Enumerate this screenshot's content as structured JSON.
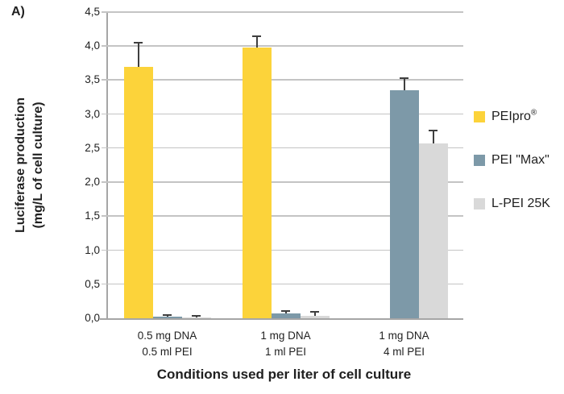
{
  "figure_label": "A)",
  "axis": {
    "x_title": "Conditions used per liter of cell culture",
    "y_title_line1": "Luciferase production",
    "y_title_line2": "(mg/L of cell culture)"
  },
  "legend": {
    "items": [
      {
        "label": "PEIpro",
        "suffix": "®"
      },
      {
        "label": "PEI \"Max\"",
        "suffix": ""
      },
      {
        "label": "L-PEI 25K",
        "suffix": ""
      }
    ]
  },
  "chart_data": {
    "type": "bar",
    "title": "",
    "xlabel": "Conditions used per liter of cell culture",
    "ylabel": "Luciferase production (mg/L of cell culture)",
    "ylabel_lines": [
      "Luciferase production",
      "(mg/L of cell culture)"
    ],
    "categories": [
      [
        "0.5 mg DNA",
        "0.5 ml PEI"
      ],
      [
        "1 mg DNA",
        "1 ml PEI"
      ],
      [
        "1 mg DNA",
        "4 ml PEI"
      ]
    ],
    "series": [
      {
        "name": "PEIpro®",
        "color": "#FCD33A",
        "values": [
          3.7,
          3.98,
          null
        ],
        "errors_plus": [
          0.35,
          0.17,
          null
        ]
      },
      {
        "name": "PEI \"Max\"",
        "color": "#7D99A8",
        "values": [
          0.02,
          0.07,
          3.35
        ],
        "errors_plus": [
          0.03,
          0.04,
          0.18
        ]
      },
      {
        "name": "L-PEI 25K",
        "color": "#D9D9D9",
        "values": [
          0.01,
          0.04,
          2.57
        ],
        "errors_plus": [
          0.02,
          0.05,
          0.19
        ]
      }
    ],
    "ylim": [
      0,
      4.5
    ],
    "ytick_step": 0.5,
    "ytick_labels": [
      "0,0",
      "0,5",
      "1,0",
      "1,5",
      "2,0",
      "2,5",
      "3,0",
      "3,5",
      "4,0",
      "4,5"
    ],
    "grid": "horizontal",
    "legend_position": "right",
    "error_bars": "plus-direction-only"
  }
}
